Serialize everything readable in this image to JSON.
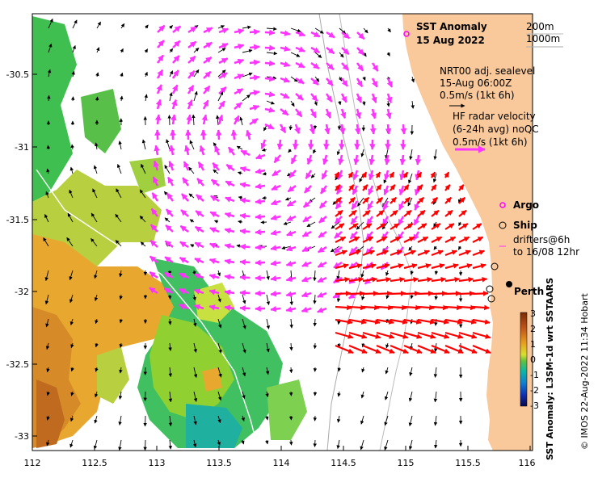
{
  "map": {
    "title_line1": "SST Anomaly",
    "title_line2": "15 Aug 2022",
    "depth_labels": [
      "200m",
      "1000m"
    ],
    "sealevel_text": [
      "NRT00 adj. sealevel",
      "15-Aug 06:00Z",
      "0.5m/s (1kt 6h)"
    ],
    "hf_text": [
      "HF radar velocity",
      "(6-24h avg) noQC",
      "0.5m/s (1kt 6h)"
    ],
    "legend": {
      "argo": "Argo",
      "ship": "Ship",
      "drifters": [
        "drifters@6h",
        "to 16/08 12hr"
      ]
    },
    "place_label": "Perth",
    "colorbar_label": "SST Anomaly: L3SM-1d wrt SSTAARS",
    "credit": "© IMOS 22-Aug-2022 11:34 Hobart",
    "x_ticks": [
      "112",
      "112.5",
      "113",
      "113.5",
      "114",
      "114.5",
      "115",
      "115.5",
      "116"
    ],
    "y_ticks": [
      "-30.5",
      "-31",
      "-31.5",
      "-32",
      "-32.5",
      "-33"
    ],
    "colorbar_ticks": [
      "3",
      "2",
      "1",
      "0",
      "-1",
      "-2",
      "-3"
    ],
    "colors": {
      "land": "#f9c99c",
      "hf_arrow": "#ff33ff",
      "strong_arrow": "#ff0000",
      "sealevel_arrow": "#000000",
      "argo": "#ff00ff"
    }
  }
}
